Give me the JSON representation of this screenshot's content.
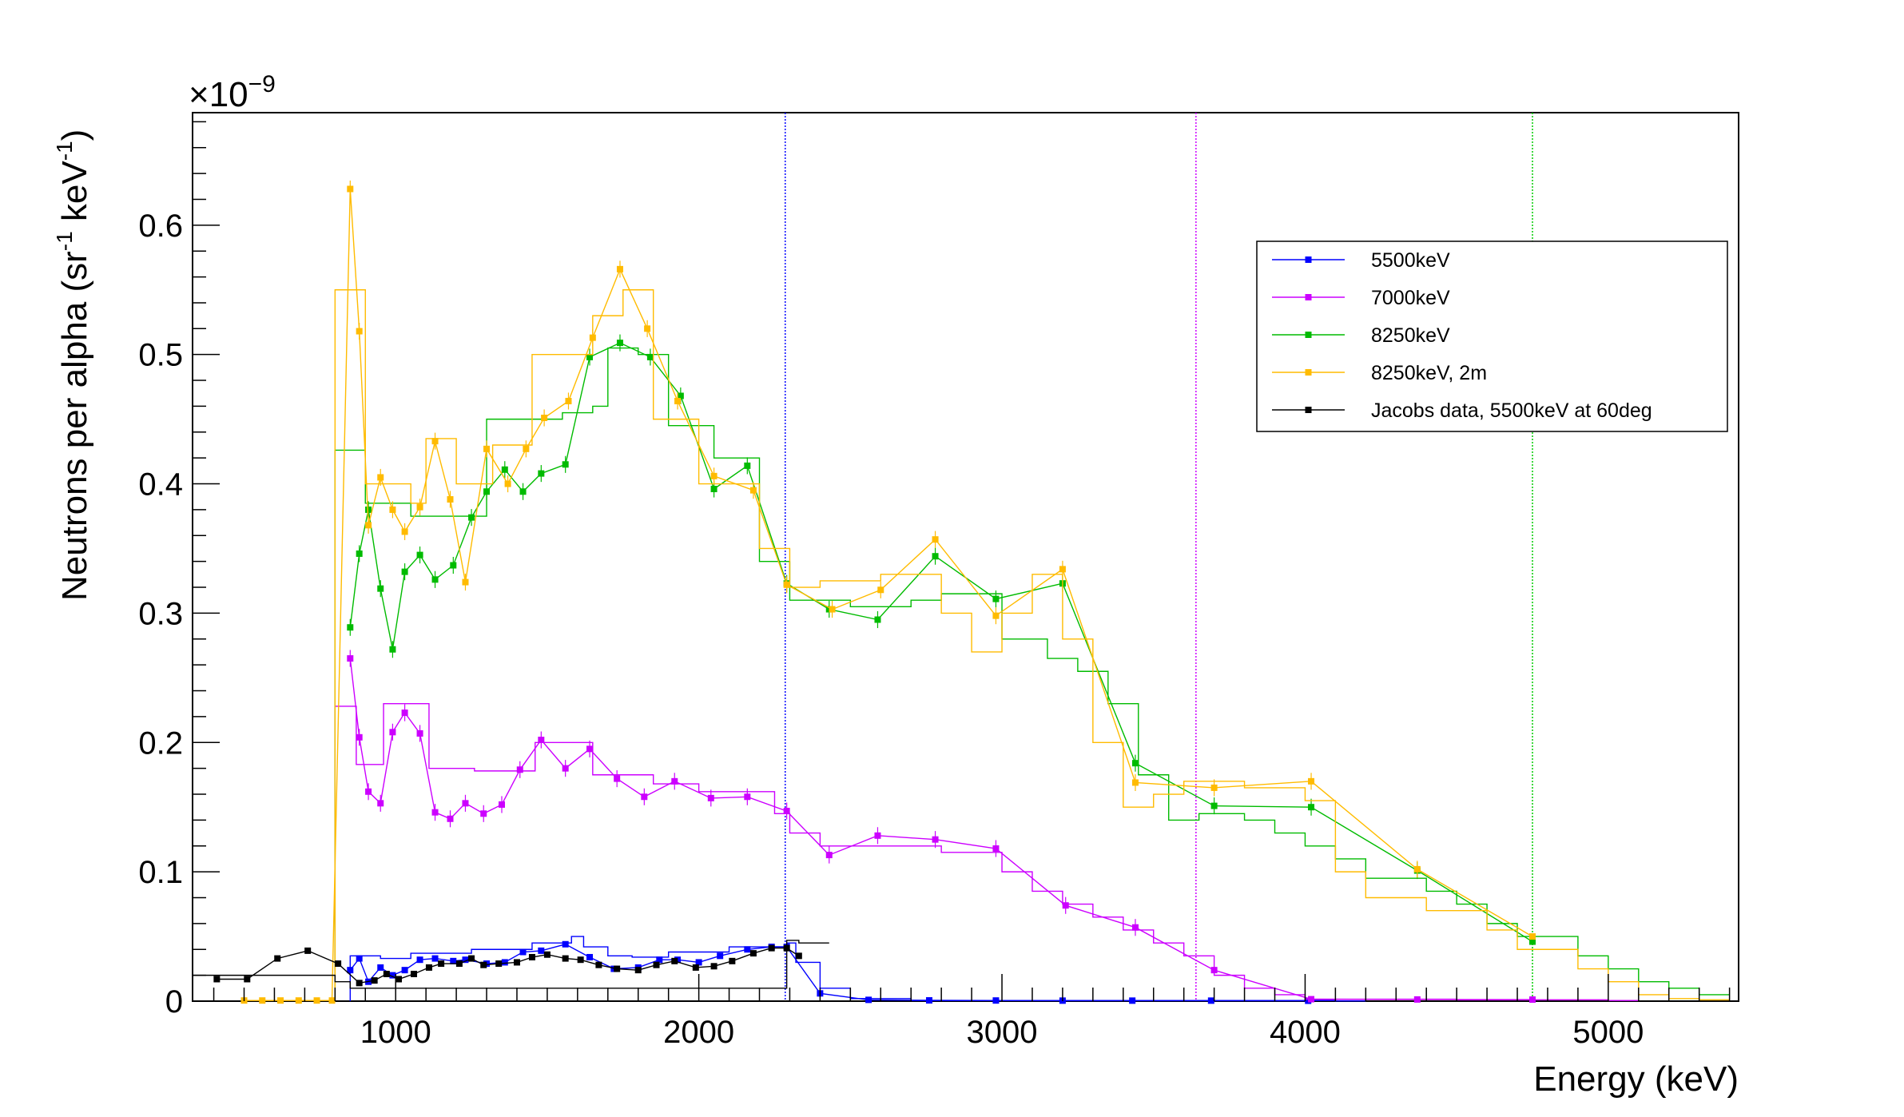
{
  "chart_data": {
    "type": "line",
    "title": "",
    "xlabel": "Energy (keV)",
    "ylabel": "Neutrons per alpha (sr",
    "ylabel_sup1": "-1",
    "ylabel_mid": " keV",
    "ylabel_sup2": "-1",
    "ylabel_end": ")",
    "y_multiplier_base": "×10",
    "y_multiplier_exp": "−9",
    "xlim": [
      330,
      5430
    ],
    "ylim": [
      0,
      0.687
    ],
    "x_ticks": [
      1000,
      2000,
      3000,
      4000,
      5000
    ],
    "x_tick_labels": [
      "1000",
      "2000",
      "3000",
      "4000",
      "5000"
    ],
    "y_ticks": [
      0,
      0.1,
      0.2,
      0.3,
      0.4,
      0.5,
      0.6
    ],
    "y_tick_labels": [
      "0",
      "0.1",
      "0.2",
      "0.3",
      "0.4",
      "0.5",
      "0.6"
    ],
    "legend_position": "top-right",
    "vertical_lines": [
      {
        "x": 2285,
        "color": "#0000ff"
      },
      {
        "x": 3640,
        "color": "#cc00ff"
      },
      {
        "x": 4750,
        "color": "#00cc00"
      }
    ],
    "series": [
      {
        "name": "5500keV",
        "color": "#0000ff",
        "points": [
          [
            850,
            0.024
          ],
          [
            880,
            0.033
          ],
          [
            910,
            0.015
          ],
          [
            950,
            0.026
          ],
          [
            990,
            0.02
          ],
          [
            1030,
            0.024
          ],
          [
            1080,
            0.032
          ],
          [
            1130,
            0.033
          ],
          [
            1190,
            0.031
          ],
          [
            1230,
            0.032
          ],
          [
            1300,
            0.029
          ],
          [
            1360,
            0.03
          ],
          [
            1420,
            0.038
          ],
          [
            1480,
            0.039
          ],
          [
            1560,
            0.044
          ],
          [
            1640,
            0.034
          ],
          [
            1720,
            0.025
          ],
          [
            1800,
            0.026
          ],
          [
            1870,
            0.032
          ],
          [
            1930,
            0.032
          ],
          [
            2000,
            0.03
          ],
          [
            2070,
            0.035
          ],
          [
            2160,
            0.04
          ],
          [
            2240,
            0.042
          ],
          [
            2290,
            0.042
          ],
          [
            2400,
            0.006
          ],
          [
            2560,
            0.001
          ],
          [
            2760,
            0.0006
          ],
          [
            2980,
            0.0005
          ],
          [
            3200,
            0.0004
          ],
          [
            3430,
            0.0004
          ],
          [
            3690,
            0.0004
          ],
          [
            4010,
            0.0003
          ]
        ],
        "hist": [
          [
            850,
            0.035
          ],
          [
            950,
            0.033
          ],
          [
            1050,
            0.037
          ],
          [
            1250,
            0.04
          ],
          [
            1450,
            0.045
          ],
          [
            1580,
            0.05
          ],
          [
            1620,
            0.042
          ],
          [
            1700,
            0.035
          ],
          [
            1780,
            0.034
          ],
          [
            1900,
            0.038
          ],
          [
            2100,
            0.042
          ],
          [
            2290,
            0.045
          ],
          [
            2320,
            0.03
          ],
          [
            2400,
            0.01
          ],
          [
            2500,
            0.002
          ],
          [
            2700,
            0.0005
          ],
          [
            4100,
            0.0002
          ]
        ]
      },
      {
        "name": "7000keV",
        "color": "#cc00ff",
        "points": [
          [
            850,
            0.265
          ],
          [
            880,
            0.204
          ],
          [
            910,
            0.162
          ],
          [
            950,
            0.153
          ],
          [
            990,
            0.208
          ],
          [
            1030,
            0.223
          ],
          [
            1080,
            0.207
          ],
          [
            1130,
            0.146
          ],
          [
            1180,
            0.141
          ],
          [
            1230,
            0.153
          ],
          [
            1290,
            0.145
          ],
          [
            1350,
            0.152
          ],
          [
            1410,
            0.179
          ],
          [
            1480,
            0.202
          ],
          [
            1560,
            0.18
          ],
          [
            1640,
            0.195
          ],
          [
            1730,
            0.172
          ],
          [
            1820,
            0.158
          ],
          [
            1920,
            0.17
          ],
          [
            2040,
            0.157
          ],
          [
            2160,
            0.158
          ],
          [
            2290,
            0.147
          ],
          [
            2430,
            0.113
          ],
          [
            2590,
            0.128
          ],
          [
            2780,
            0.125
          ],
          [
            2980,
            0.118
          ],
          [
            3210,
            0.074
          ],
          [
            3440,
            0.057
          ],
          [
            3700,
            0.024
          ],
          [
            4020,
            0.0015
          ],
          [
            4370,
            0.0013
          ],
          [
            4750,
            0.0012
          ]
        ],
        "hist": [
          [
            800,
            0.228
          ],
          [
            870,
            0.183
          ],
          [
            960,
            0.23
          ],
          [
            1110,
            0.18
          ],
          [
            1260,
            0.178
          ],
          [
            1460,
            0.2
          ],
          [
            1650,
            0.175
          ],
          [
            1850,
            0.168
          ],
          [
            2000,
            0.162
          ],
          [
            2250,
            0.145
          ],
          [
            2300,
            0.13
          ],
          [
            2400,
            0.12
          ],
          [
            2600,
            0.12
          ],
          [
            2800,
            0.115
          ],
          [
            3000,
            0.1
          ],
          [
            3100,
            0.085
          ],
          [
            3200,
            0.075
          ],
          [
            3300,
            0.065
          ],
          [
            3400,
            0.055
          ],
          [
            3500,
            0.045
          ],
          [
            3600,
            0.035
          ],
          [
            3700,
            0.02
          ],
          [
            3800,
            0.01
          ],
          [
            3900,
            0.005
          ],
          [
            4000,
            0.0015
          ],
          [
            4500,
            0.001
          ],
          [
            5000,
            0.0005
          ]
        ]
      },
      {
        "name": "8250keV",
        "color": "#00bb00",
        "points": [
          [
            850,
            0.289
          ],
          [
            880,
            0.346
          ],
          [
            910,
            0.38
          ],
          [
            950,
            0.319
          ],
          [
            990,
            0.272
          ],
          [
            1030,
            0.332
          ],
          [
            1080,
            0.345
          ],
          [
            1130,
            0.326
          ],
          [
            1190,
            0.337
          ],
          [
            1250,
            0.374
          ],
          [
            1300,
            0.394
          ],
          [
            1360,
            0.411
          ],
          [
            1420,
            0.394
          ],
          [
            1480,
            0.408
          ],
          [
            1560,
            0.415
          ],
          [
            1640,
            0.498
          ],
          [
            1740,
            0.509
          ],
          [
            1840,
            0.498
          ],
          [
            1940,
            0.468
          ],
          [
            2050,
            0.396
          ],
          [
            2160,
            0.414
          ],
          [
            2290,
            0.323
          ],
          [
            2430,
            0.303
          ],
          [
            2590,
            0.295
          ],
          [
            2780,
            0.344
          ],
          [
            2980,
            0.311
          ],
          [
            3200,
            0.323
          ],
          [
            3440,
            0.184
          ],
          [
            3700,
            0.151
          ],
          [
            4020,
            0.15
          ],
          [
            4370,
            0.101
          ],
          [
            4750,
            0.046
          ]
        ],
        "hist": [
          [
            800,
            0.426
          ],
          [
            900,
            0.385
          ],
          [
            1050,
            0.375
          ],
          [
            1300,
            0.45
          ],
          [
            1550,
            0.455
          ],
          [
            1650,
            0.46
          ],
          [
            1700,
            0.505
          ],
          [
            1800,
            0.5
          ],
          [
            1900,
            0.445
          ],
          [
            2050,
            0.42
          ],
          [
            2200,
            0.34
          ],
          [
            2300,
            0.31
          ],
          [
            2500,
            0.305
          ],
          [
            2700,
            0.31
          ],
          [
            2800,
            0.315
          ],
          [
            3000,
            0.28
          ],
          [
            3150,
            0.265
          ],
          [
            3250,
            0.255
          ],
          [
            3350,
            0.23
          ],
          [
            3450,
            0.175
          ],
          [
            3550,
            0.14
          ],
          [
            3650,
            0.145
          ],
          [
            3800,
            0.14
          ],
          [
            3900,
            0.13
          ],
          [
            4000,
            0.12
          ],
          [
            4100,
            0.11
          ],
          [
            4200,
            0.095
          ],
          [
            4400,
            0.085
          ],
          [
            4500,
            0.075
          ],
          [
            4600,
            0.06
          ],
          [
            4700,
            0.05
          ],
          [
            4900,
            0.035
          ],
          [
            5000,
            0.025
          ],
          [
            5100,
            0.015
          ],
          [
            5200,
            0.01
          ],
          [
            5300,
            0.005
          ]
        ]
      },
      {
        "name": "8250keV, 2m",
        "color": "#ffbb00",
        "points": [
          [
            850,
            0.628
          ],
          [
            880,
            0.518
          ],
          [
            910,
            0.368
          ],
          [
            950,
            0.405
          ],
          [
            990,
            0.38
          ],
          [
            1030,
            0.363
          ],
          [
            1080,
            0.382
          ],
          [
            1130,
            0.433
          ],
          [
            1180,
            0.388
          ],
          [
            1230,
            0.324
          ],
          [
            1300,
            0.427
          ],
          [
            1370,
            0.4
          ],
          [
            1430,
            0.427
          ],
          [
            1490,
            0.451
          ],
          [
            1570,
            0.464
          ],
          [
            1650,
            0.513
          ],
          [
            1740,
            0.566
          ],
          [
            1830,
            0.52
          ],
          [
            1930,
            0.464
          ],
          [
            2050,
            0.406
          ],
          [
            2180,
            0.395
          ],
          [
            2290,
            0.322
          ],
          [
            2440,
            0.303
          ],
          [
            2600,
            0.318
          ],
          [
            2780,
            0.357
          ],
          [
            2980,
            0.298
          ],
          [
            3200,
            0.334
          ],
          [
            3440,
            0.169
          ],
          [
            3700,
            0.165
          ],
          [
            4020,
            0.17
          ],
          [
            4370,
            0.102
          ],
          [
            4750,
            0.05
          ],
          [
            500,
            0.0005
          ],
          [
            560,
            0.0005
          ],
          [
            620,
            0.0005
          ],
          [
            680,
            0.0005
          ],
          [
            740,
            0.0005
          ],
          [
            790,
            0.0005
          ]
        ],
        "hist": [
          [
            800,
            0.55
          ],
          [
            900,
            0.4
          ],
          [
            1050,
            0.385
          ],
          [
            1100,
            0.435
          ],
          [
            1200,
            0.4
          ],
          [
            1320,
            0.43
          ],
          [
            1450,
            0.5
          ],
          [
            1650,
            0.53
          ],
          [
            1750,
            0.55
          ],
          [
            1850,
            0.45
          ],
          [
            2000,
            0.4
          ],
          [
            2200,
            0.35
          ],
          [
            2300,
            0.32
          ],
          [
            2400,
            0.325
          ],
          [
            2600,
            0.33
          ],
          [
            2800,
            0.3
          ],
          [
            2900,
            0.27
          ],
          [
            3000,
            0.3
          ],
          [
            3100,
            0.33
          ],
          [
            3200,
            0.28
          ],
          [
            3300,
            0.2
          ],
          [
            3400,
            0.15
          ],
          [
            3500,
            0.16
          ],
          [
            3600,
            0.17
          ],
          [
            3800,
            0.165
          ],
          [
            4000,
            0.155
          ],
          [
            4100,
            0.1
          ],
          [
            4200,
            0.08
          ],
          [
            4400,
            0.07
          ],
          [
            4600,
            0.055
          ],
          [
            4700,
            0.04
          ],
          [
            4900,
            0.025
          ],
          [
            5000,
            0.015
          ],
          [
            5100,
            0.005
          ],
          [
            5200,
            0.002
          ],
          [
            5300,
            0.001
          ]
        ]
      },
      {
        "name": "Jacobs data, 5500keV at 60deg",
        "color": "#000000",
        "points": [
          [
            410,
            0.017
          ],
          [
            510,
            0.017
          ],
          [
            610,
            0.033
          ],
          [
            710,
            0.039
          ],
          [
            810,
            0.029
          ],
          [
            880,
            0.014
          ],
          [
            930,
            0.016
          ],
          [
            970,
            0.021
          ],
          [
            1010,
            0.017
          ],
          [
            1060,
            0.021
          ],
          [
            1110,
            0.026
          ],
          [
            1150,
            0.029
          ],
          [
            1210,
            0.029
          ],
          [
            1250,
            0.033
          ],
          [
            1290,
            0.028
          ],
          [
            1340,
            0.029
          ],
          [
            1400,
            0.03
          ],
          [
            1450,
            0.034
          ],
          [
            1500,
            0.036
          ],
          [
            1560,
            0.033
          ],
          [
            1610,
            0.032
          ],
          [
            1670,
            0.028
          ],
          [
            1730,
            0.025
          ],
          [
            1800,
            0.024
          ],
          [
            1860,
            0.028
          ],
          [
            1920,
            0.031
          ],
          [
            1990,
            0.026
          ],
          [
            2050,
            0.027
          ],
          [
            2110,
            0.031
          ],
          [
            2180,
            0.037
          ],
          [
            2240,
            0.041
          ],
          [
            2290,
            0.041
          ],
          [
            2330,
            0.035
          ]
        ],
        "hist": [
          [
            330,
            0.02
          ],
          [
            800,
            0.015
          ],
          [
            850,
            0.01
          ],
          [
            2290,
            0.047
          ],
          [
            2330,
            0.045
          ]
        ]
      }
    ]
  }
}
